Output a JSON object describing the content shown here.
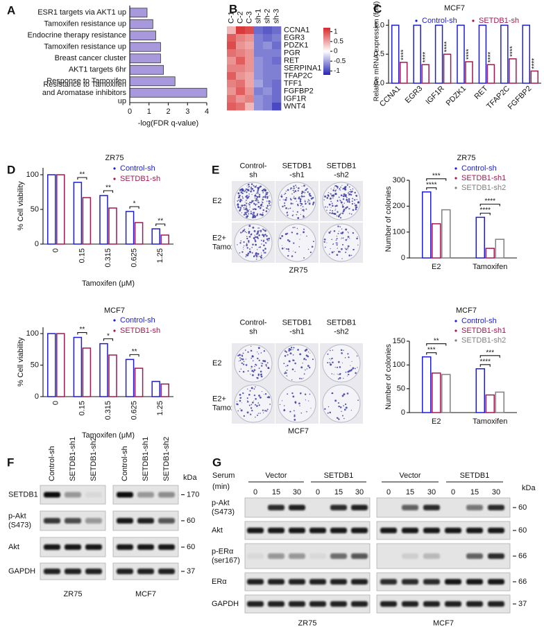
{
  "panel_labels": [
    "A",
    "B",
    "C",
    "D",
    "E",
    "F",
    "G"
  ],
  "chart_data": [
    {
      "type": "barh",
      "categories": [
        "ESR1 targets via AKT1 up",
        "Tamoxifen resistance up",
        "Endocrine therapy resistance",
        "Tamoxifen resistance up",
        "Breast cancer cluster",
        "AKT1 targets 6hr",
        "Response to Tamoxifen",
        "Resistance to Tamoxifen and Aromatase inhibitors up"
      ],
      "values": [
        0.9,
        1.2,
        1.35,
        1.6,
        1.6,
        1.75,
        2.35,
        4.0
      ],
      "color": "#a899dd",
      "xlim": [
        0,
        4
      ],
      "xticks": [
        0,
        1,
        2,
        3,
        4
      ],
      "xlabel": "-log(FDR q-value)"
    },
    {
      "type": "heatmap",
      "columns": [
        "C-1",
        "C-2",
        "C-3",
        "sh-1",
        "sh-2",
        "sh-3"
      ],
      "rows": [
        "CCNA1",
        "EGR3",
        "PDZK1",
        "PGR",
        "RET",
        "SERPINA1",
        "TFAP2C",
        "TFF1",
        "FGFBP2",
        "IGF1R",
        "WNT4"
      ],
      "values": [
        [
          0.4,
          1.1,
          1.0,
          -0.8,
          -0.9,
          -0.8
        ],
        [
          0.9,
          0.7,
          0.6,
          -0.7,
          -0.8,
          -0.7
        ],
        [
          1.0,
          0.6,
          0.5,
          -0.7,
          -0.6,
          -0.8
        ],
        [
          0.8,
          0.7,
          0.6,
          -0.7,
          -0.7,
          -0.7
        ],
        [
          0.6,
          0.9,
          0.6,
          -0.6,
          -0.7,
          -0.8
        ],
        [
          0.7,
          0.7,
          0.6,
          -0.6,
          -0.7,
          -0.7
        ],
        [
          0.9,
          0.6,
          0.5,
          -0.6,
          -0.7,
          -0.7
        ],
        [
          0.7,
          0.8,
          0.5,
          -0.5,
          -0.7,
          -0.8
        ],
        [
          0.6,
          0.9,
          0.6,
          -0.7,
          -0.6,
          -0.8
        ],
        [
          0.8,
          0.6,
          0.7,
          -0.6,
          -0.7,
          -0.8
        ],
        [
          0.9,
          0.8,
          0.4,
          -0.6,
          -0.7,
          -1.0
        ]
      ],
      "zlim": [
        -1.2,
        1.2
      ],
      "zticks": [
        1,
        0.5,
        0,
        -0.5,
        -1
      ],
      "colors": [
        "#2424b4",
        "#ffffff",
        "#d62828"
      ]
    },
    {
      "type": "bar",
      "title": "MCF7",
      "ylabel": "Relative mRNA expression (fold)",
      "categories": [
        "CCNA1",
        "EGR3",
        "IGF1R",
        "PDZK1",
        "RET",
        "TFAP2C",
        "FGFBP2"
      ],
      "series": [
        {
          "name": "Control-sh",
          "color": "#1c1cd4",
          "values": [
            1,
            1,
            1,
            1,
            1,
            1,
            1
          ]
        },
        {
          "name": "SETDB1-sh",
          "color": "#a01850",
          "values": [
            0.36,
            0.32,
            0.5,
            0.37,
            0.32,
            0.42,
            0.21
          ]
        }
      ],
      "ylim": [
        0,
        1.1
      ],
      "yticks": [
        {
          "value": 0,
          "label": "0.0"
        },
        {
          "value": 0.5,
          "label": "0.5"
        },
        {
          "value": 1,
          "label": "1.0"
        }
      ],
      "significance": [
        "****",
        "****",
        "****",
        "****",
        "****",
        "****",
        "****"
      ]
    },
    {
      "type": "bar",
      "title": "ZR75",
      "ylabel": "% Cell viability",
      "xlabel": "Tamoxifen (μM)",
      "categories": [
        "0",
        "0.15",
        "0.315",
        "0.625",
        "1.25"
      ],
      "series": [
        {
          "name": "Control-sh",
          "color": "#1c1cd4",
          "values": [
            100,
            89,
            70,
            47,
            22
          ]
        },
        {
          "name": "SETDB1-sh",
          "color": "#a01850",
          "values": [
            100,
            67,
            52,
            31,
            13
          ]
        }
      ],
      "ylim": [
        0,
        110
      ],
      "yticks": [
        0,
        50,
        100
      ],
      "significance": [
        null,
        "**",
        "**",
        "*",
        "**"
      ]
    },
    {
      "type": "bar",
      "title": "MCF7",
      "ylabel": "% Cell viability",
      "xlabel": "Tamoxifen (μM)",
      "categories": [
        "0",
        "0.15",
        "0.315",
        "0.625",
        "1.25"
      ],
      "series": [
        {
          "name": "Control-sh",
          "color": "#1c1cd4",
          "values": [
            100,
            94,
            84,
            59,
            24
          ]
        },
        {
          "name": "SETDB1-sh",
          "color": "#a01850",
          "values": [
            100,
            77,
            66,
            45,
            20
          ]
        }
      ],
      "ylim": [
        0,
        110
      ],
      "yticks": [
        0,
        50,
        100
      ],
      "significance": [
        null,
        "**",
        "*",
        "**",
        null
      ]
    },
    {
      "type": "bar",
      "title": "ZR75",
      "ylabel": "Number of colonies",
      "categories": [
        "E2",
        "Tamoxifen"
      ],
      "series": [
        {
          "name": "Control-sh",
          "color": "#1c1cd4",
          "values": [
            255,
            157
          ]
        },
        {
          "name": "SETDB1-sh1",
          "color": "#a01850",
          "values": [
            132,
            37
          ]
        },
        {
          "name": "SETDB1-sh2",
          "color": "#7f7f7f",
          "values": [
            186,
            72
          ]
        }
      ],
      "ylim": [
        0,
        300
      ],
      "yticks": [
        0,
        100,
        200,
        300
      ],
      "significance": [
        [
          "****",
          "***"
        ],
        [
          "****",
          "****"
        ]
      ]
    },
    {
      "type": "bar",
      "title": "MCF7",
      "ylabel": "Number of colonies",
      "categories": [
        "E2",
        "Tamoxifen"
      ],
      "series": [
        {
          "name": "Control-sh",
          "color": "#1c1cd4",
          "values": [
            117,
            92
          ]
        },
        {
          "name": "SETDB1-sh1",
          "color": "#a01850",
          "values": [
            83,
            37
          ]
        },
        {
          "name": "SETDB1-sh2",
          "color": "#7f7f7f",
          "values": [
            80,
            43
          ]
        }
      ],
      "ylim": [
        0,
        150
      ],
      "yticks": [
        0,
        50,
        100,
        150
      ],
      "significance": [
        [
          "***",
          "**"
        ],
        [
          "****",
          "***"
        ]
      ]
    }
  ],
  "colonies": {
    "columns": [
      "Control-sh",
      "SETDB1-sh1",
      "SETDB1-sh2"
    ],
    "rows": [
      "E2",
      "E2+ Tamoxifen"
    ],
    "cell_lines": [
      "ZR75",
      "MCF7"
    ]
  },
  "blots_f": {
    "lanes": [
      "Control-sh",
      "SETDB1-sh1",
      "SETDB1-sh2"
    ],
    "rows": [
      "SETDB1",
      "p-Akt (S473)",
      "Akt",
      "GAPDH"
    ],
    "kda_header": "kDa",
    "kda": [
      "170",
      "60",
      "60",
      "37"
    ],
    "cell_lines": [
      "ZR75",
      "MCF7"
    ]
  },
  "blots_g": {
    "serum_label": "Serum",
    "min_label": "(min)",
    "groups": [
      "Vector",
      "SETDB1",
      "Vector",
      "SETDB1"
    ],
    "times": [
      "0",
      "15",
      "30"
    ],
    "rows": [
      "p-Akt (S473)",
      "Akt",
      "p-ERα (ser167)",
      "ERα",
      "GAPDH"
    ],
    "kda_header": "kDa",
    "kda": [
      "60",
      "60",
      "66",
      "66",
      "37"
    ],
    "cell_lines": [
      "ZR75",
      "MCF7"
    ]
  }
}
